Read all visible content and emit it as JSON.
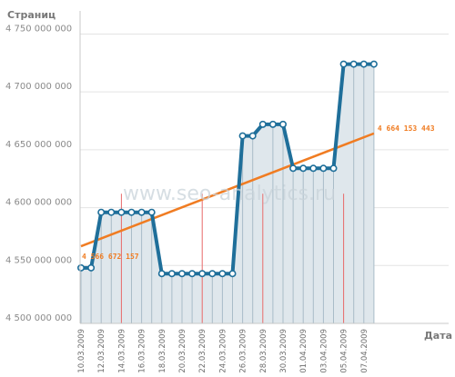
{
  "chart_data": {
    "type": "line",
    "title": "",
    "ylabel": "Страниц",
    "xlabel": "Дата",
    "watermark": "www.seo-analytics.ru",
    "ylim": [
      4500000000,
      4770000000
    ],
    "yticks": [
      {
        "value": 4500000000,
        "label": "4 500 000 000"
      },
      {
        "value": 4550000000,
        "label": "4 550 000 000"
      },
      {
        "value": 4600000000,
        "label": "4 600 000 000"
      },
      {
        "value": 4650000000,
        "label": "4 650 000 000"
      },
      {
        "value": 4700000000,
        "label": "4 700 000 000"
      },
      {
        "value": 4750000000,
        "label": "4 750 000 000"
      }
    ],
    "x": [
      "10.03.2009",
      "11.03.2009",
      "12.03.2009",
      "13.03.2009",
      "14.03.2009",
      "15.03.2009",
      "16.03.2009",
      "17.03.2009",
      "18.03.2009",
      "19.03.2009",
      "20.03.2009",
      "21.03.2009",
      "22.03.2009",
      "23.03.2009",
      "24.03.2009",
      "25.03.2009",
      "26.03.2009",
      "27.03.2009",
      "28.03.2009",
      "29.03.2009",
      "30.03.2009",
      "31.03.2009",
      "01.04.2009",
      "02.04.2009",
      "03.04.2009",
      "04.04.2009",
      "05.04.2009",
      "06.04.2009",
      "07.04.2009",
      "08.04.2009"
    ],
    "xtick_labels": [
      "10.03.2009",
      "12.03.2009",
      "14.03.2009",
      "16.03.2009",
      "18.03.2009",
      "20.03.2009",
      "22.03.2009",
      "24.03.2009",
      "26.03.2009",
      "28.03.2009",
      "30.03.2009",
      "01.04.2009",
      "03.04.2009",
      "05.04.2009",
      "07.04.2009"
    ],
    "red_markers": [
      "14.03.2009",
      "22.03.2009",
      "28.03.2009",
      "05.04.2009"
    ],
    "series": [
      {
        "name": "",
        "color": "#1f6f9a",
        "fill": "#dfe7ec",
        "values": [
          4548000000,
          4548000000,
          4596000000,
          4596000000,
          4596000000,
          4596000000,
          4596000000,
          4596000000,
          4543000000,
          4543000000,
          4543000000,
          4543000000,
          4543000000,
          4543000000,
          4543000000,
          4543000000,
          4662000000,
          4662000000,
          4672000000,
          4672000000,
          4672000000,
          4634000000,
          4634000000,
          4634000000,
          4634000000,
          4634000000,
          4724000000,
          4724000000,
          4724000000,
          4724000000
        ]
      }
    ],
    "trend": {
      "color": "#f07c22",
      "start_value": 4566672157,
      "end_value": 4664153443,
      "start_label": "4 566 672 157",
      "end_label": "4 664 153 443"
    },
    "grid": true
  }
}
